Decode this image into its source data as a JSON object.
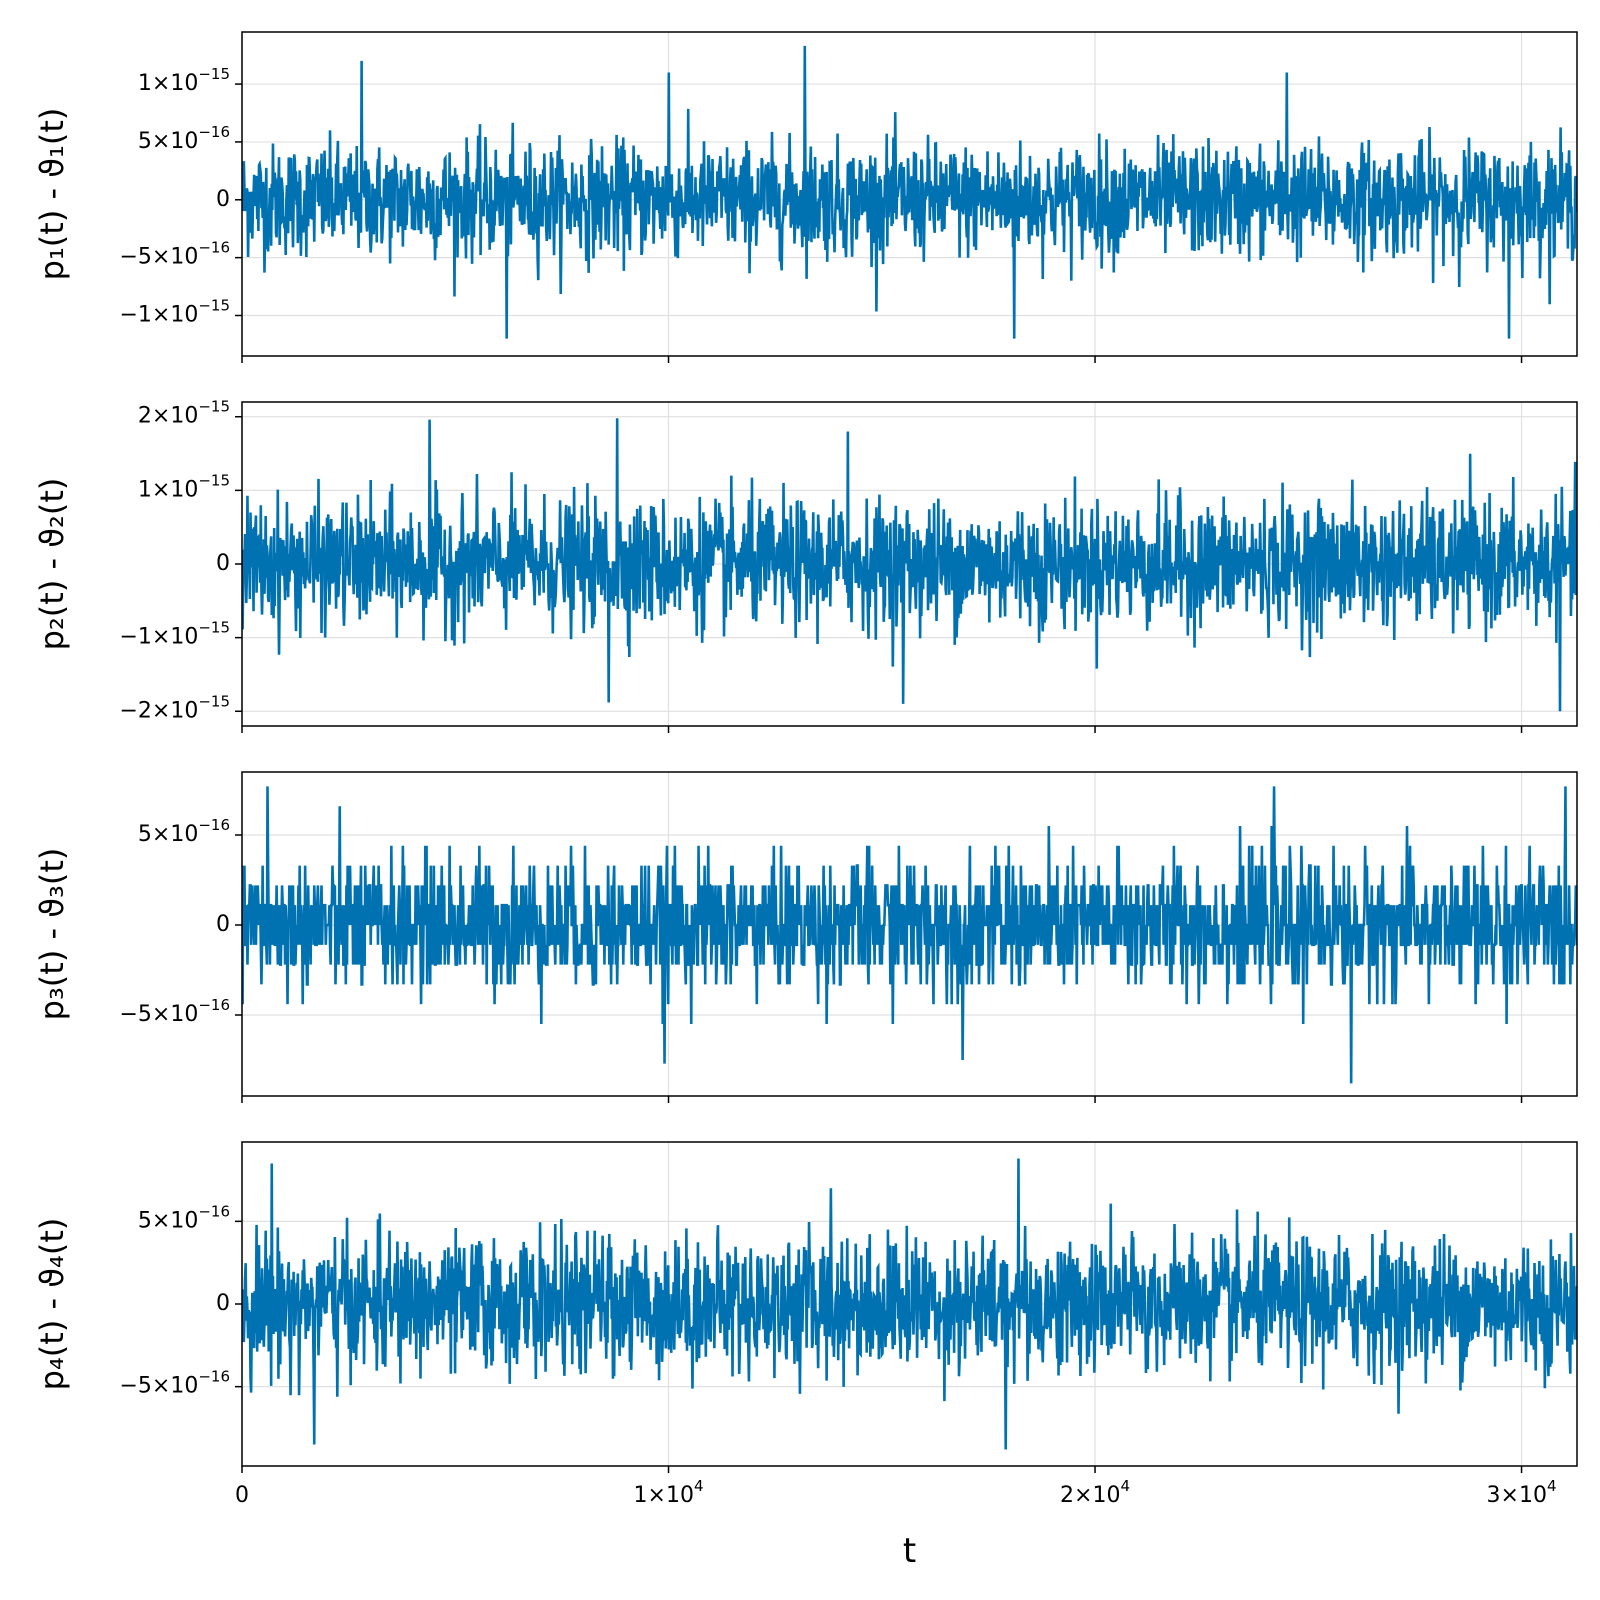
{
  "chart_data": [
    {
      "type": "line",
      "ylabel": "p₁(t) - ϑ₁(t)",
      "xlim": [
        0,
        31300
      ],
      "ylim": [
        -1.35e-15,
        1.45e-15
      ],
      "yticks": [
        {
          "value": 1e-15,
          "mantissa": "1",
          "exp": "−15"
        },
        {
          "value": 5e-16,
          "mantissa": "5",
          "exp": "−16"
        },
        {
          "value": 0,
          "mantissa": "0",
          "exp": ""
        },
        {
          "value": -5e-16,
          "mantissa": "−5",
          "exp": "−16"
        },
        {
          "value": -1e-15,
          "mantissa": "−1",
          "exp": "−15"
        }
      ],
      "series": [
        {
          "color": "#0072b2",
          "noise_std": 2.4e-16,
          "min": -1.2e-15,
          "max": 1.33e-15,
          "spikes": [
            [
              2800,
              1.2e-15
            ],
            [
              13200,
              1.33e-15
            ],
            [
              6200,
              -1.2e-15
            ],
            [
              29700,
              -1.2e-15
            ],
            [
              10000,
              1.1e-15
            ],
            [
              24500,
              1.1e-15
            ],
            [
              18100,
              -1.2e-15
            ]
          ]
        }
      ],
      "grid": true
    },
    {
      "type": "line",
      "ylabel": "p₂(t) - ϑ₂(t)",
      "xlim": [
        0,
        31300
      ],
      "ylim": [
        -2.2e-15,
        2.2e-15
      ],
      "yticks": [
        {
          "value": 2e-15,
          "mantissa": "2",
          "exp": "−15"
        },
        {
          "value": 1e-15,
          "mantissa": "1",
          "exp": "−15"
        },
        {
          "value": 0,
          "mantissa": "0",
          "exp": ""
        },
        {
          "value": -1e-15,
          "mantissa": "−1",
          "exp": "−15"
        },
        {
          "value": -2e-15,
          "mantissa": "−2",
          "exp": "−15"
        }
      ],
      "series": [
        {
          "color": "#0072b2",
          "noise_std": 4.2e-16,
          "min": -2e-15,
          "max": 2e-15,
          "spikes": [
            [
              4400,
              1.96e-15
            ],
            [
              8800,
              1.98e-15
            ],
            [
              30900,
              -2e-15
            ],
            [
              15500,
              -1.9e-15
            ],
            [
              8600,
              -1.88e-15
            ],
            [
              14200,
              1.8e-15
            ]
          ]
        }
      ],
      "grid": true
    },
    {
      "type": "line",
      "ylabel": "p₃(t) - ϑ₃(t)",
      "xlim": [
        0,
        31300
      ],
      "ylim": [
        -9.5e-16,
        8.5e-16
      ],
      "yticks": [
        {
          "value": 5e-16,
          "mantissa": "5",
          "exp": "−16"
        },
        {
          "value": 0,
          "mantissa": "0",
          "exp": ""
        },
        {
          "value": -5e-16,
          "mantissa": "−5",
          "exp": "−16"
        }
      ],
      "series": [
        {
          "color": "#0072b2",
          "noise_std": 1.8e-16,
          "min": -8.8e-16,
          "max": 7.8e-16,
          "quantum": 1.1e-16,
          "spikes": [
            [
              26000,
              -8.8e-16
            ],
            [
              9900,
              -7.7e-16
            ],
            [
              24200,
              7.7e-16
            ],
            [
              600,
              7.7e-16
            ],
            [
              16900,
              -7.5e-16
            ]
          ]
        }
      ],
      "grid": true
    },
    {
      "type": "line",
      "xlabel": "t",
      "ylabel": "p₄(t) - ϑ₄(t)",
      "xlim": [
        0,
        31300
      ],
      "ylim": [
        -9.8e-16,
        9.8e-16
      ],
      "xticks": [
        {
          "value": 0,
          "mantissa": "0",
          "exp": ""
        },
        {
          "value": 10000,
          "mantissa": "1",
          "exp": "4"
        },
        {
          "value": 20000,
          "mantissa": "2",
          "exp": "4"
        },
        {
          "value": 30000,
          "mantissa": "3",
          "exp": "4"
        }
      ],
      "yticks": [
        {
          "value": 5e-16,
          "mantissa": "5",
          "exp": "−16"
        },
        {
          "value": 0,
          "mantissa": "0",
          "exp": ""
        },
        {
          "value": -5e-16,
          "mantissa": "−5",
          "exp": "−16"
        }
      ],
      "series": [
        {
          "color": "#0072b2",
          "noise_std": 2e-16,
          "min": -8.8e-16,
          "max": 8.8e-16,
          "spikes": [
            [
              18200,
              8.8e-16
            ],
            [
              700,
              8.5e-16
            ],
            [
              17900,
              -8.8e-16
            ],
            [
              1700,
              -8.5e-16
            ],
            [
              13800,
              7e-16
            ]
          ]
        }
      ],
      "grid": true
    }
  ]
}
